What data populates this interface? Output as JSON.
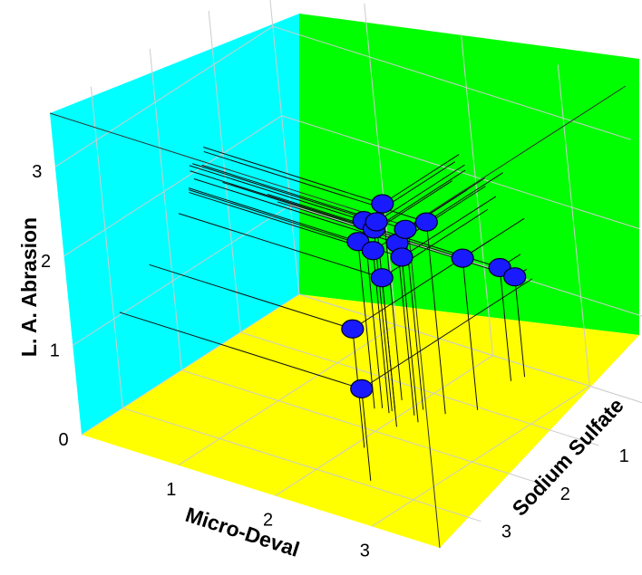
{
  "chart_data": {
    "type": "scatter",
    "variant": "3d-scatter-with-drop-lines",
    "title": "",
    "xlabel": "Micro-Deval",
    "ylabel": "Sodium Sulfate",
    "zlabel": "L. A. Abrasion",
    "x_ticks": [
      "1",
      "2",
      "3"
    ],
    "y_ticks": [
      "0",
      "1",
      "2",
      "3"
    ],
    "z_ticks": [
      "0",
      "1",
      "2",
      "3"
    ],
    "xlim": [
      0,
      3.7
    ],
    "ylim": [
      0,
      3.7
    ],
    "zlim": [
      0,
      3.6
    ],
    "grid": true,
    "colors": {
      "back_wall": "#00ff00",
      "side_wall": "#00ffff",
      "floor": "#ffff00",
      "marker": "#1a1aff",
      "gridline": "#cccccc"
    },
    "points": [
      {
        "x": 2.5,
        "y": 2.9,
        "z": 1.03
      },
      {
        "x": 2.1,
        "y": 2.35,
        "z": 1.33
      },
      {
        "x": 2.3,
        "y": 1.3,
        "z": 2.15
      },
      {
        "x": 2.1,
        "y": 1.5,
        "z": 1.93
      },
      {
        "x": 2.4,
        "y": 0.35,
        "z": 1.27
      },
      {
        "x": 2.45,
        "y": 0.2,
        "z": 1.12
      },
      {
        "x": 2.48,
        "y": 1.05,
        "z": 1.7
      },
      {
        "x": 2.1,
        "y": 1.35,
        "z": 2.02
      },
      {
        "x": 1.8,
        "y": 1.55,
        "z": 2.1
      },
      {
        "x": 1.75,
        "y": 1.6,
        "z": 1.87
      },
      {
        "x": 1.9,
        "y": 1.55,
        "z": 2.04
      },
      {
        "x": 1.9,
        "y": 1.6,
        "z": 1.82
      },
      {
        "x": 2.1,
        "y": 1.8,
        "z": 1.67
      },
      {
        "x": 1.85,
        "y": 1.3,
        "z": 2.2
      },
      {
        "x": 1.9,
        "y": 1.5,
        "z": 2.1
      },
      {
        "x": 2.2,
        "y": 1.6,
        "z": 1.85
      }
    ]
  }
}
